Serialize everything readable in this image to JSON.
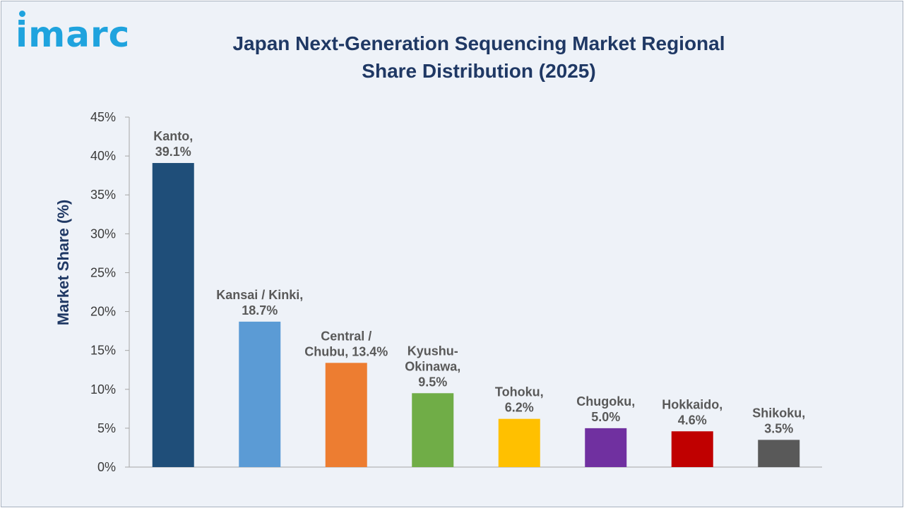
{
  "brand": {
    "logo_text": "imarc"
  },
  "colors": {
    "background": "#eef2f8",
    "title": "#1f3864",
    "logo": "#1fa3de"
  },
  "chart_data": {
    "type": "bar",
    "title": "Japan Next-Generation Sequencing Market Regional Share Distribution (2025)",
    "xlabel": "",
    "ylabel": "Market Share (%)",
    "ylim": [
      0,
      45
    ],
    "yticks": [
      "0%",
      "5%",
      "10%",
      "15%",
      "20%",
      "25%",
      "30%",
      "35%",
      "40%",
      "45%"
    ],
    "grid": false,
    "categories": [
      "Kanto",
      "Kansai / Kinki",
      "Central / Chubu",
      "Kyushu-Okinawa",
      "Tohoku",
      "Chugoku",
      "Hokkaido",
      "Shikoku"
    ],
    "values": [
      39.1,
      18.7,
      13.4,
      9.5,
      6.2,
      5.0,
      4.6,
      3.5
    ],
    "data_labels": [
      [
        "Kanto,",
        "39.1%"
      ],
      [
        "Kansai / Kinki,",
        "18.7%"
      ],
      [
        "Central /",
        "Chubu, 13.4%"
      ],
      [
        "Kyushu-",
        "Okinawa,",
        "9.5%"
      ],
      [
        "Tohoku,",
        "6.2%"
      ],
      [
        "Chugoku,",
        "5.0%"
      ],
      [
        "Hokkaido,",
        "4.6%"
      ],
      [
        "Shikoku,",
        "3.5%"
      ]
    ],
    "bar_colors": [
      "#1f4e79",
      "#5b9bd5",
      "#ed7d31",
      "#70ad47",
      "#ffc000",
      "#7030a0",
      "#c00000",
      "#595959"
    ]
  }
}
